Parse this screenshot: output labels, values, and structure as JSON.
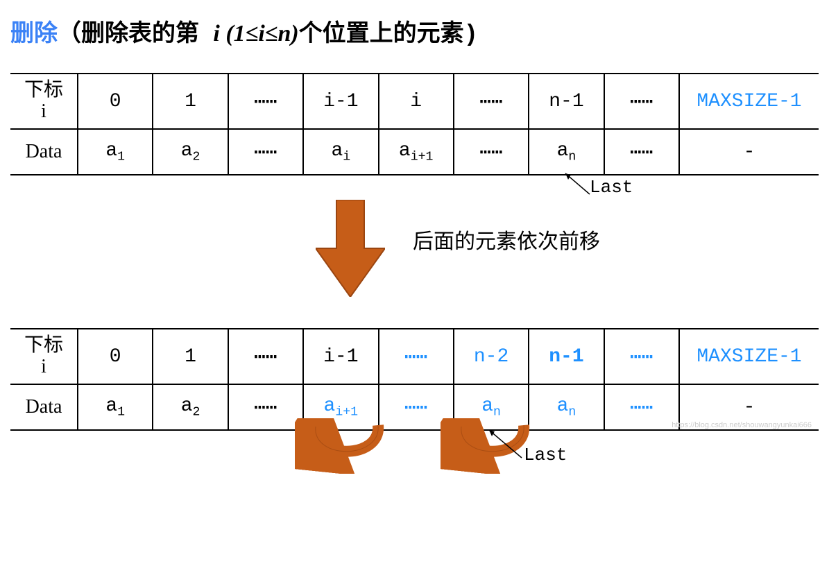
{
  "title": {
    "prefix_highlight": "删除",
    "open": "（删除表的第 ",
    "italic": "i (1≤i≤n)",
    "close": "个位置上的元素)"
  },
  "colors": {
    "highlight_blue": "#1e90ff",
    "title_blue": "#3b82f6",
    "arrow_fill": "#c65d18",
    "arrow_stroke": "#9a4510",
    "border": "#000000",
    "text": "#000000",
    "background": "#ffffff",
    "watermark": "#cccccc"
  },
  "table1": {
    "row1_label": "下标\ni",
    "row1": [
      "0",
      "1",
      "⋯⋯",
      "i-1",
      "i",
      "⋯⋯",
      "n-1",
      "⋯⋯",
      "MAXSIZE-1"
    ],
    "row1_blue_idx": [
      8
    ],
    "row2_label": "Data",
    "row2": [
      [
        "a",
        "1"
      ],
      [
        "a",
        "2"
      ],
      "⋯⋯",
      [
        "a",
        "i"
      ],
      [
        "a",
        "i+1"
      ],
      "⋯⋯",
      [
        "a",
        "n"
      ],
      "⋯⋯",
      "-"
    ],
    "last_label": "Last"
  },
  "middle_caption": "后面的元素依次前移",
  "table2": {
    "row1_label": "下标\ni",
    "row1": [
      "0",
      "1",
      "⋯⋯",
      "i-1",
      "⋯⋯",
      "n-2",
      "n-1",
      "⋯⋯",
      "MAXSIZE-1"
    ],
    "row1_blue_idx": [
      4,
      5,
      6,
      7,
      8
    ],
    "row1_bold_idx": [
      6
    ],
    "row2_label": "Data",
    "row2": [
      [
        "a",
        "1"
      ],
      [
        "a",
        "2"
      ],
      "⋯⋯",
      [
        "a",
        "i+1"
      ],
      "⋯⋯",
      [
        "a",
        "n"
      ],
      [
        "a",
        "n"
      ],
      "⋯⋯",
      "-"
    ],
    "row2_blue_idx": [
      3,
      4,
      5,
      6,
      7
    ],
    "last_label": "Last"
  },
  "watermark": "https://blog.csdn.net/shouwangyunkai666",
  "arrow_style": {
    "big_arrow_width": 100,
    "big_arrow_height": 140,
    "curve_stroke_width": 16
  }
}
